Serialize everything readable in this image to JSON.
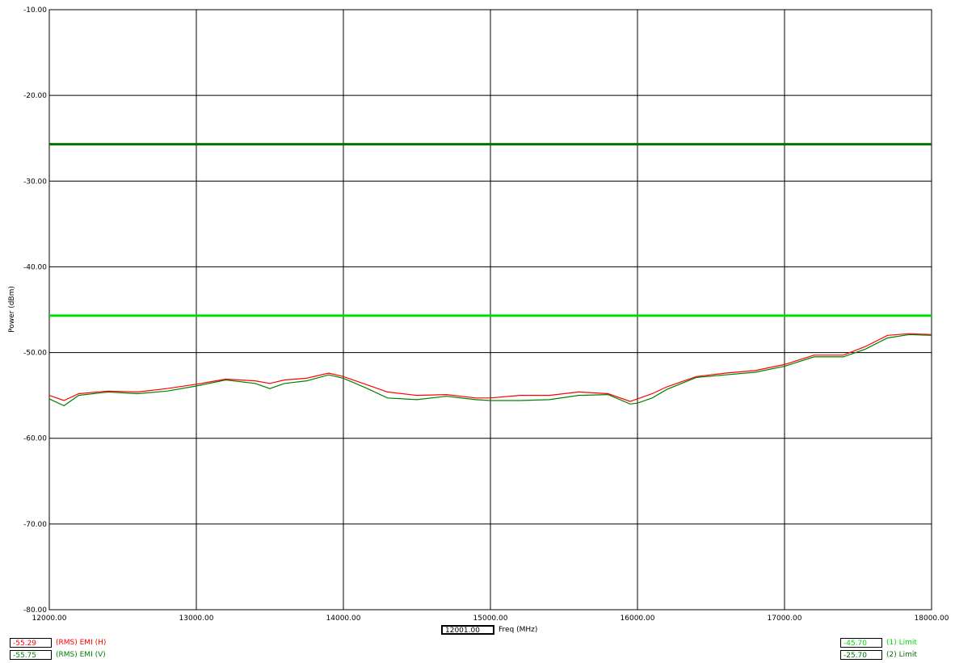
{
  "chart_data": {
    "type": "line",
    "title": "",
    "xlabel": "Freq (MHz)",
    "ylabel": "Power (dBm)",
    "xlim": [
      12000,
      18000
    ],
    "ylim": [
      -80,
      -10
    ],
    "grid": true,
    "x_ticks": [
      "12000.00",
      "13000.00",
      "14000.00",
      "15000.00",
      "16000.00",
      "17000.00",
      "18000.00"
    ],
    "y_ticks": [
      "-10.00",
      "-20.00",
      "-30.00",
      "-40.00",
      "-50.00",
      "-60.00",
      "-70.00",
      "-80.00"
    ],
    "series": [
      {
        "name": "(RMS) EMI (H)",
        "color": "#ff0000",
        "x": [
          12000,
          12100,
          12200,
          12400,
          12600,
          12800,
          13000,
          13200,
          13400,
          13500,
          13600,
          13750,
          13900,
          14000,
          14150,
          14300,
          14500,
          14700,
          14900,
          15000,
          15200,
          15400,
          15600,
          15800,
          15950,
          16000,
          16100,
          16200,
          16400,
          16600,
          16800,
          17000,
          17200,
          17400,
          17550,
          17700,
          17850,
          18000
        ],
        "y": [
          -55.0,
          -55.6,
          -54.8,
          -54.5,
          -54.6,
          -54.2,
          -53.7,
          -53.1,
          -53.3,
          -53.6,
          -53.2,
          -53.0,
          -52.4,
          -52.8,
          -53.7,
          -54.6,
          -55.0,
          -54.9,
          -55.3,
          -55.3,
          -55.0,
          -55.0,
          -54.6,
          -54.8,
          -55.7,
          -55.4,
          -54.8,
          -54.0,
          -52.8,
          -52.4,
          -52.1,
          -51.4,
          -50.3,
          -50.3,
          -49.3,
          -48.0,
          -47.8,
          -47.9
        ]
      },
      {
        "name": "(RMS) EMI (V)",
        "color": "#008000",
        "x": [
          12000,
          12100,
          12200,
          12400,
          12600,
          12800,
          13000,
          13200,
          13400,
          13500,
          13600,
          13750,
          13900,
          14000,
          14150,
          14300,
          14500,
          14700,
          14900,
          15000,
          15200,
          15400,
          15600,
          15800,
          15950,
          16000,
          16100,
          16200,
          16400,
          16600,
          16800,
          17000,
          17200,
          17400,
          17550,
          17700,
          17850,
          18000
        ],
        "y": [
          -55.4,
          -56.2,
          -55.0,
          -54.6,
          -54.8,
          -54.5,
          -53.9,
          -53.2,
          -53.6,
          -54.2,
          -53.6,
          -53.3,
          -52.6,
          -53.0,
          -54.1,
          -55.3,
          -55.5,
          -55.1,
          -55.5,
          -55.6,
          -55.6,
          -55.5,
          -55.0,
          -54.9,
          -56.0,
          -55.9,
          -55.3,
          -54.3,
          -52.9,
          -52.6,
          -52.3,
          -51.6,
          -50.5,
          -50.5,
          -49.6,
          -48.3,
          -47.9,
          -48.0
        ]
      },
      {
        "name": "(1) Limit",
        "color": "#00e000",
        "x": [
          12000,
          18000
        ],
        "y": [
          -45.7,
          -45.7
        ]
      },
      {
        "name": "(2) Limit",
        "color": "#007000",
        "x": [
          12000,
          18000
        ],
        "y": [
          -25.7,
          -25.7
        ]
      }
    ],
    "legend": {
      "left": [
        {
          "value": "-55.29",
          "label": "(RMS) EMI (H)",
          "color": "#ff0000"
        },
        {
          "value": "-55.75",
          "label": "(RMS) EMI (V)",
          "color": "#008000"
        }
      ],
      "right": [
        {
          "value": "-45.70",
          "label": "(1) Limit",
          "color": "#00dd00"
        },
        {
          "value": "-25.70",
          "label": "(2) Limit",
          "color": "#007000"
        }
      ]
    },
    "cursor_readout": "12001.00"
  }
}
